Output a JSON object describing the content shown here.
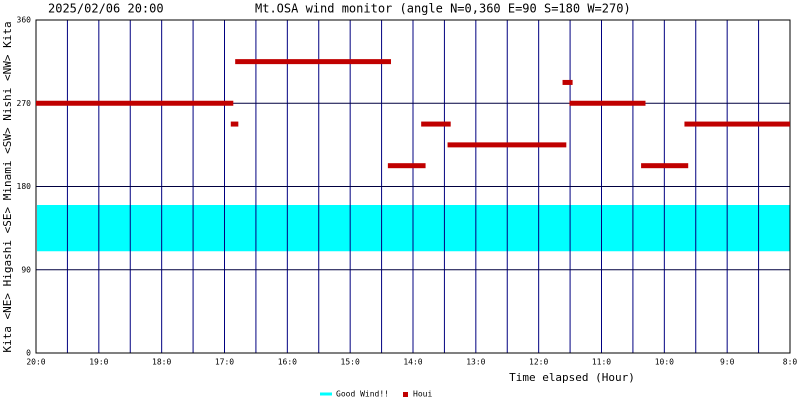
{
  "chart_data": {
    "type": "range_bar",
    "date": "2025/02/06 20:00",
    "title": "Mt.OSA wind monitor (angle N=0,360 E=90 S=180 W=270)",
    "x_label": "Time elapsed (Hour)",
    "y_label": "Kita <NE> Higashi <SE> Minami <SW> Nishi <NW> Kita",
    "xlim": [
      0,
      12
    ],
    "xticks": [
      {
        "value": 0,
        "label": "20:0"
      },
      {
        "value": 1,
        "label": "19:0"
      },
      {
        "value": 2,
        "label": "18:0"
      },
      {
        "value": 3,
        "label": "17:0"
      },
      {
        "value": 4,
        "label": "16:0"
      },
      {
        "value": 5,
        "label": "15:0"
      },
      {
        "value": 6,
        "label": "14:0"
      },
      {
        "value": 7,
        "label": "13:0"
      },
      {
        "value": 8,
        "label": "12:0"
      },
      {
        "value": 9,
        "label": "11:0"
      },
      {
        "value": 10,
        "label": "10:0"
      },
      {
        "value": 11,
        "label": "9:0"
      },
      {
        "value": 12,
        "label": "8:0"
      }
    ],
    "xminorticks": [
      0.5,
      1.5,
      2.5,
      3.5,
      4.5,
      5.5,
      6.5,
      7.5,
      8.5,
      9.5,
      10.5,
      11.5
    ],
    "ylim": [
      0,
      360
    ],
    "yticks": [
      0,
      90,
      180,
      270,
      360
    ],
    "band": {
      "name": "Good Wind!!",
      "color": "#00ffff",
      "low": 110,
      "high": 160
    },
    "series": [
      {
        "name": "Houi",
        "color": "#c00000",
        "x_start": [
          0,
          3.1,
          3.17,
          5.6,
          6.13,
          6.55,
          8.38,
          8.49,
          9.63,
          10.32
        ],
        "x_end": [
          3.14,
          3.22,
          5.65,
          6.2,
          6.6,
          8.44,
          8.54,
          9.7,
          10.38,
          12
        ],
        "values": [
          270,
          247.5,
          315,
          202.5,
          247.5,
          225,
          292.5,
          270,
          202.5,
          247.5
        ]
      }
    ]
  }
}
